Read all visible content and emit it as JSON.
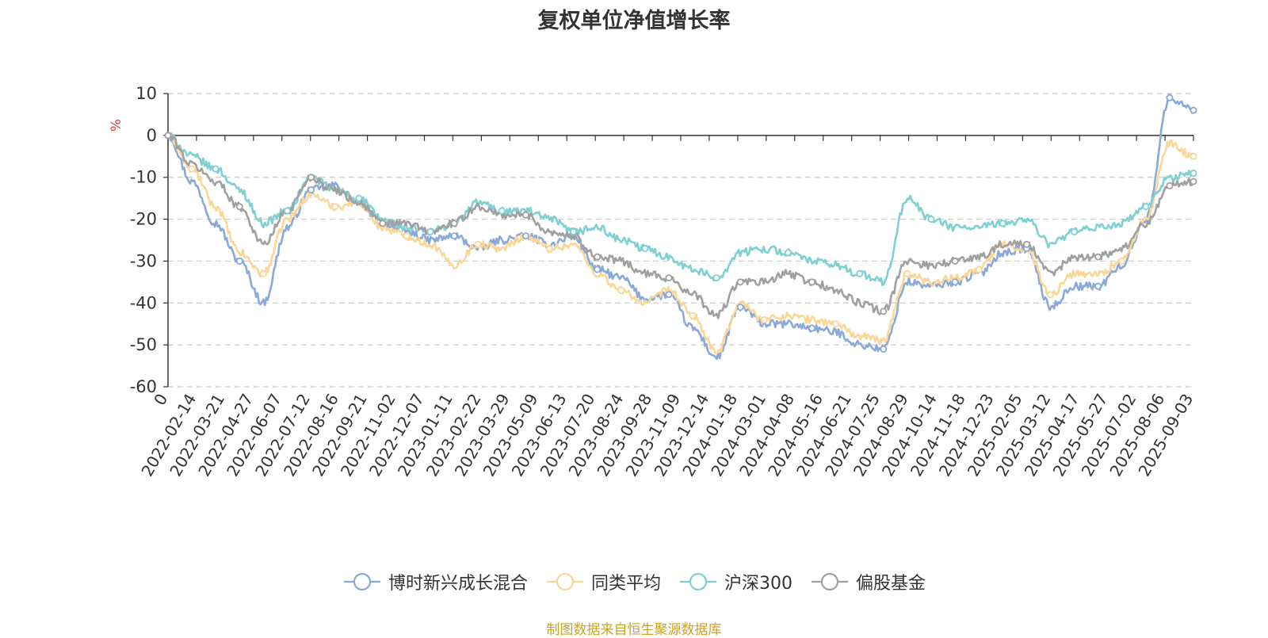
{
  "chart_data": {
    "type": "line",
    "title": "复权单位净值增长率",
    "ylabel": "%",
    "ylim": [
      -60,
      10
    ],
    "yticks": [
      10,
      0,
      -10,
      -20,
      -30,
      -40,
      -50,
      -60
    ],
    "x_tick_labels": [
      "0",
      "2022-02-14",
      "2022-03-21",
      "2022-04-27",
      "2022-06-07",
      "2022-07-12",
      "2022-08-16",
      "2022-09-21",
      "2022-11-02",
      "2022-12-07",
      "2023-01-11",
      "2023-02-22",
      "2023-03-29",
      "2023-05-09",
      "2023-06-13",
      "2023-07-20",
      "2023-08-24",
      "2023-09-28",
      "2023-11-09",
      "2023-12-14",
      "2024-01-18",
      "2024-03-01",
      "2024-04-08",
      "2024-05-16",
      "2024-06-21",
      "2024-07-25",
      "2024-08-29",
      "2024-10-14",
      "2024-11-18",
      "2024-12-23",
      "2025-02-05",
      "2025-03-12",
      "2025-04-17",
      "2025-05-27",
      "2025-07-02",
      "2025-08-06",
      "2025-09-03"
    ],
    "grid": true,
    "legend_position": "bottom",
    "series": [
      {
        "name": "博时新兴成长混合",
        "color": "#8aa8d8",
        "values": [
          0,
          -11,
          -21,
          -30,
          -40,
          -22,
          -13,
          -12,
          -16,
          -21,
          -23,
          -25,
          -24,
          -27,
          -25,
          -24,
          -26,
          -24,
          -32,
          -34,
          -39,
          -38,
          -46,
          -53,
          -41,
          -45,
          -45,
          -46,
          -47,
          -50,
          -51,
          -35,
          -36,
          -35,
          -33,
          -28,
          -27,
          -41,
          -36,
          -36,
          -31,
          -20,
          9,
          6
        ]
      },
      {
        "name": "同类平均",
        "color": "#fad797",
        "values": [
          0,
          -8,
          -17,
          -28,
          -33,
          -20,
          -14,
          -17,
          -16,
          -22,
          -24,
          -26,
          -31,
          -26,
          -27,
          -24,
          -27,
          -26,
          -33,
          -37,
          -40,
          -37,
          -43,
          -52,
          -40,
          -44,
          -43,
          -44,
          -45,
          -48,
          -49,
          -33,
          -35,
          -34,
          -32,
          -26,
          -27,
          -38,
          -33,
          -33,
          -30,
          -20,
          -2,
          -5
        ]
      },
      {
        "name": "沪深300",
        "color": "#7fd0d2",
        "values": [
          0,
          -5,
          -8,
          -13,
          -21,
          -18,
          -10,
          -13,
          -15,
          -20,
          -22,
          -23,
          -21,
          -16,
          -18,
          -18,
          -20,
          -23,
          -22,
          -25,
          -27,
          -29,
          -32,
          -34,
          -28,
          -27,
          -28,
          -30,
          -31,
          -33,
          -35,
          -15,
          -20,
          -22,
          -22,
          -21,
          -20,
          -26,
          -23,
          -22,
          -21,
          -17,
          -10,
          -9
        ]
      },
      {
        "name": "偏股基金",
        "color": "#a0a0a0",
        "values": [
          0,
          -7,
          -11,
          -17,
          -26,
          -18,
          -10,
          -13,
          -16,
          -21,
          -21,
          -23,
          -21,
          -17,
          -19,
          -19,
          -23,
          -24,
          -29,
          -30,
          -33,
          -34,
          -38,
          -43,
          -35,
          -35,
          -33,
          -35,
          -37,
          -40,
          -42,
          -30,
          -31,
          -30,
          -29,
          -26,
          -26,
          -33,
          -29,
          -29,
          -27,
          -21,
          -12,
          -11
        ]
      }
    ]
  },
  "source_text": "制图数据来自恒生聚源数据库"
}
